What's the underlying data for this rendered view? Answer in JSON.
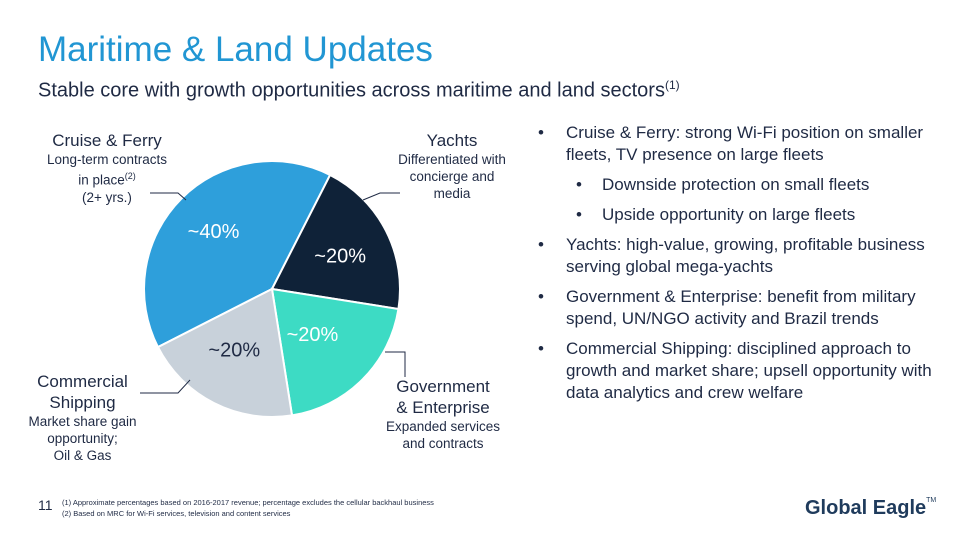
{
  "title": "Maritime & Land Updates",
  "subtitle": {
    "text": "Stable core with growth opportunities across maritime and land sectors",
    "sup": "(1)"
  },
  "chart_data": {
    "type": "pie",
    "slices": [
      {
        "label": "Cruise & Ferry",
        "value": 40,
        "display": "~40%",
        "color": "#2e9fdb"
      },
      {
        "label": "Yachts",
        "value": 20,
        "display": "~20%",
        "color": "#0f2238"
      },
      {
        "label": "Government & Enterprise",
        "value": 20,
        "display": "~20%",
        "color": "#3ddbc4"
      },
      {
        "label": "Commercial Shipping",
        "value": 20,
        "display": "~20%",
        "color": "#c8d1da"
      }
    ]
  },
  "segments": {
    "cruise": {
      "heading": "Cruise & Ferry",
      "line1": "Long-term contracts",
      "line2": "in place",
      "line2_sup": "(2)",
      "line3": "(2+ yrs.)"
    },
    "yachts": {
      "heading": "Yachts",
      "line1": "Differentiated with",
      "line2": "concierge and",
      "line3": "media"
    },
    "government": {
      "heading1": "Government",
      "heading2": "& Enterprise",
      "line1": "Expanded services",
      "line2": "and contracts"
    },
    "commercial": {
      "heading1": "Commercial",
      "heading2": "Shipping",
      "line1": "Market share gain",
      "line2": "opportunity;",
      "line3": "Oil & Gas"
    }
  },
  "bullets": [
    {
      "text": "Cruise & Ferry: strong Wi-Fi position on smaller fleets, TV presence on large fleets",
      "level": 1
    },
    {
      "text": "Downside protection on small fleets",
      "level": 2
    },
    {
      "text": "Upside opportunity on large fleets",
      "level": 2
    },
    {
      "text": "Yachts: high-value, growing, profitable business serving global mega-yachts",
      "level": 1
    },
    {
      "text": "Government & Enterprise: benefit from military spend, UN/NGO activity and Brazil trends",
      "level": 1
    },
    {
      "text": "Commercial Shipping: disciplined approach to growth and market share; upsell opportunity with data analytics and crew welfare",
      "level": 1
    }
  ],
  "footnotes": [
    "(1) Approximate percentages based on 2016-2017 revenue; percentage excludes the cellular backhaul business",
    "(2) Based on MRC for Wi-Fi services, television and content services"
  ],
  "page_number": "11",
  "logo": {
    "text": "Global Eagle",
    "tm": "TM"
  }
}
